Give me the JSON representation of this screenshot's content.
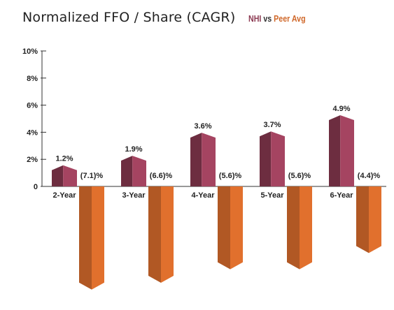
{
  "chart_data": {
    "type": "bar",
    "title": "Normalized FFO / Share (CAGR)",
    "legend": {
      "nhi": "NHI",
      "vs": "vs",
      "peer": "Peer Avg"
    },
    "categories": [
      "2-Year",
      "3-Year",
      "4-Year",
      "5-Year",
      "6-Year"
    ],
    "series": [
      {
        "name": "NHI",
        "values": [
          1.2,
          1.9,
          3.6,
          3.7,
          4.9
        ],
        "labels": [
          "1.2%",
          "1.9%",
          "3.6%",
          "3.7%",
          "4.9%"
        ],
        "color": "#8c3a52"
      },
      {
        "name": "Peer Avg",
        "values": [
          -7.1,
          -6.6,
          -5.6,
          -5.6,
          -4.4
        ],
        "labels": [
          "(7.1)%",
          "(6.6)%",
          "(5.6)%",
          "(5.6)%",
          "(4.4)%"
        ],
        "color": "#d0682a"
      }
    ],
    "y_ticks": [
      "0",
      "2%",
      "4%",
      "6%",
      "8%",
      "10%"
    ],
    "y_tick_values": [
      0,
      2,
      4,
      6,
      8,
      10
    ],
    "ylim": [
      -8,
      10
    ],
    "xlabel": "",
    "ylabel": ""
  }
}
